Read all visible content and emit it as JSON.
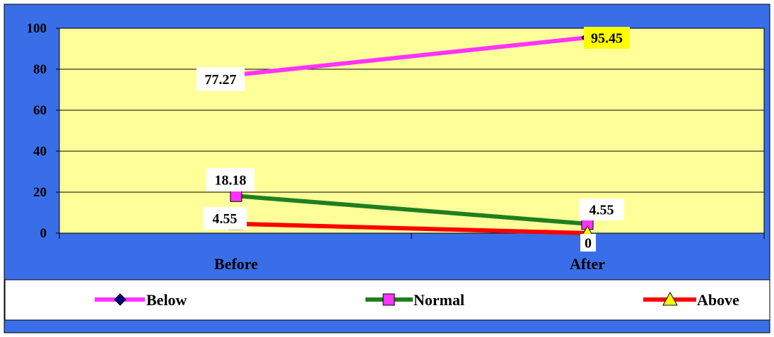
{
  "chart_data": {
    "type": "line",
    "categories": [
      "Before",
      "After"
    ],
    "ylim": [
      0,
      100
    ],
    "y_ticks": [
      "0",
      "20",
      "40",
      "60",
      "80",
      "100"
    ],
    "grid": true,
    "legend_position": "bottom",
    "series": [
      {
        "name": "Below",
        "values": [
          77.27,
          95.45
        ],
        "labels": [
          "77.27",
          "95.45"
        ],
        "line_color": "#ff33ff",
        "marker": "diamond",
        "marker_color": "#000080"
      },
      {
        "name": "Normal",
        "values": [
          18.18,
          4.55
        ],
        "labels": [
          "18.18",
          "4.55"
        ],
        "line_color": "#1f7f1f",
        "marker": "square",
        "marker_color": "#ff33ff"
      },
      {
        "name": "Above",
        "values": [
          4.55,
          0
        ],
        "labels": [
          "4.55",
          "0"
        ],
        "line_color": "#ff0000",
        "marker": "triangle",
        "marker_color": "#ffff00"
      }
    ]
  },
  "colors": {
    "frame_background": "#3a6ee8",
    "plot_background": "#ffff99",
    "legend_background": "#ffffff",
    "highlight_label_background": "#ffff00",
    "label_background": "#ffffff",
    "axis_text": "#000000"
  }
}
